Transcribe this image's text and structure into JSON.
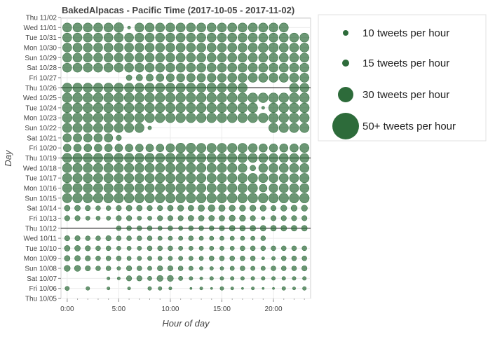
{
  "chart_data": {
    "type": "scatter",
    "title": "BakedAlpacas - Pacific Time (2017-10-05 - 2017-11-02)",
    "xlabel": "Hour of day",
    "ylabel": "Day",
    "x_ticks": [
      "0:00",
      "5:00",
      "10:00",
      "15:00",
      "20:00"
    ],
    "x_tick_values": [
      0,
      5,
      10,
      15,
      20
    ],
    "xlim": [
      -0.6,
      23.6
    ],
    "days": [
      "Thu 10/05",
      "Fri 10/06",
      "Sat 10/07",
      "Sun 10/08",
      "Mon 10/09",
      "Tue 10/10",
      "Wed 10/11",
      "Thu 10/12",
      "Fri 10/13",
      "Sat 10/14",
      "Sun 10/15",
      "Mon 10/16",
      "Tue 10/17",
      "Wed 10/18",
      "Thu 10/19",
      "Fri 10/20",
      "Sat 10/21",
      "Sun 10/22",
      "Mon 10/23",
      "Tue 10/24",
      "Wed 10/25",
      "Thu 10/26",
      "Fri 10/27",
      "Sat 10/28",
      "Sun 10/29",
      "Mon 10/30",
      "Tue 10/31",
      "Wed 11/01",
      "Thu 11/02"
    ],
    "week_separators": [
      "Thu 10/12",
      "Thu 10/19",
      "Thu 10/26"
    ],
    "marker_color": "#2d6b3a",
    "marker_fill_opacity": 0.7,
    "grid": true,
    "legend_position": "outside-right",
    "legend": [
      {
        "label": "10 tweets per hour",
        "value": 10
      },
      {
        "label": "15 tweets per hour",
        "value": 15
      },
      {
        "label": "30 tweets per hour",
        "value": 30
      },
      {
        "label": "50+ tweets per hour",
        "value": 50
      }
    ],
    "tweets_per_hour": {
      "Fri 10/06": [
        4,
        0,
        3,
        0,
        2,
        0,
        2,
        0,
        3,
        3,
        2,
        0,
        1,
        2,
        1,
        3,
        2,
        1,
        2,
        1,
        1,
        3,
        2,
        3
      ],
      "Sat 10/07": [
        0,
        0,
        0,
        0,
        2,
        2,
        6,
        6,
        4,
        8,
        8,
        4,
        3,
        2,
        3,
        3,
        3,
        3,
        3,
        3,
        3,
        3,
        3,
        3
      ],
      "Sun 10/08": [
        8,
        8,
        6,
        5,
        5,
        3,
        6,
        5,
        4,
        6,
        6,
        5,
        4,
        3,
        3,
        3,
        4,
        5,
        4,
        4,
        5,
        5,
        5,
        6
      ],
      "Mon 10/09": [
        7,
        7,
        6,
        5,
        5,
        5,
        4,
        4,
        4,
        4,
        4,
        4,
        4,
        4,
        5,
        5,
        5,
        5,
        5,
        2,
        3,
        5,
        5,
        5
      ],
      "Tue 10/10": [
        7,
        7,
        6,
        5,
        5,
        4,
        4,
        4,
        5,
        5,
        5,
        4,
        4,
        4,
        4,
        4,
        4,
        5,
        5,
        5,
        5,
        5,
        5,
        5
      ],
      "Wed 10/11": [
        6,
        6,
        5,
        5,
        6,
        5,
        5,
        5,
        5,
        4,
        4,
        4,
        5,
        4,
        4,
        4,
        4,
        4,
        4,
        5,
        0,
        0,
        0,
        0
      ],
      "Thu 10/12": [
        0,
        0,
        0,
        0,
        0,
        5,
        5,
        5,
        5,
        4,
        5,
        4,
        5,
        5,
        5,
        6,
        7,
        7,
        7,
        7,
        7,
        7,
        7,
        7
      ],
      "Fri 10/13": [
        6,
        6,
        4,
        4,
        4,
        6,
        6,
        4,
        4,
        6,
        6,
        6,
        7,
        7,
        7,
        7,
        8,
        8,
        6,
        3,
        6,
        6,
        6,
        6
      ],
      "Sat 10/14": [
        7,
        7,
        6,
        5,
        5,
        6,
        7,
        7,
        6,
        6,
        7,
        8,
        7,
        9,
        10,
        9,
        8,
        8,
        8,
        8,
        6,
        8,
        8,
        8
      ],
      "Sun 10/15": [
        19,
        20,
        20,
        20,
        20,
        20,
        20,
        20,
        20,
        20,
        20,
        20,
        20,
        20,
        20,
        20,
        20,
        20,
        20,
        20,
        20,
        20,
        20,
        20
      ],
      "Mon 10/16": [
        19,
        19,
        19,
        19,
        19,
        19,
        19,
        19,
        19,
        20,
        20,
        20,
        20,
        19,
        19,
        19,
        19,
        19,
        19,
        13,
        17,
        18,
        18,
        18
      ],
      "Tue 10/17": [
        19,
        19,
        19,
        19,
        19,
        19,
        19,
        19,
        19,
        20,
        20,
        20,
        20,
        19,
        19,
        19,
        19,
        19,
        19,
        18,
        18,
        18,
        18,
        19
      ],
      "Wed 10/18": [
        19,
        19,
        19,
        19,
        19,
        19,
        19,
        19,
        19,
        19,
        20,
        20,
        20,
        19,
        19,
        19,
        19,
        17,
        7,
        17,
        18,
        18,
        18,
        18
      ],
      "Thu 10/19": [
        19,
        19,
        19,
        19,
        19,
        19,
        19,
        19,
        19,
        19,
        20,
        20,
        20,
        19,
        19,
        19,
        19,
        19,
        18,
        18,
        18,
        18,
        18,
        18
      ],
      "Fri 10/20": [
        13,
        13,
        13,
        13,
        13,
        13,
        13,
        13,
        13,
        13,
        16,
        20,
        20,
        19,
        19,
        19,
        19,
        19,
        17,
        15,
        15,
        15,
        15,
        18
      ],
      "Sat 10/21": [
        16,
        16,
        16,
        16,
        16,
        6,
        0,
        0,
        0,
        0,
        0,
        0,
        0,
        0,
        0,
        0,
        0,
        0,
        0,
        0,
        0,
        0,
        0,
        0
      ],
      "Sun 10/22": [
        19,
        19,
        19,
        19,
        19,
        19,
        19,
        19,
        3,
        0,
        0,
        0,
        0,
        0,
        0,
        0,
        0,
        0,
        0,
        0,
        19,
        19,
        19,
        19
      ],
      "Mon 10/23": [
        20,
        20,
        20,
        20,
        20,
        20,
        20,
        20,
        20,
        20,
        20,
        20,
        20,
        20,
        20,
        20,
        20,
        20,
        20,
        20,
        20,
        20,
        20,
        20
      ],
      "Tue 10/24": [
        20,
        20,
        20,
        20,
        20,
        20,
        20,
        20,
        20,
        20,
        20,
        20,
        20,
        20,
        20,
        20,
        20,
        20,
        20,
        2,
        20,
        20,
        20,
        20
      ],
      "Wed 10/25": [
        20,
        20,
        20,
        20,
        20,
        20,
        20,
        20,
        20,
        20,
        20,
        20,
        20,
        20,
        20,
        20,
        20,
        20,
        20,
        20,
        20,
        20,
        20,
        20
      ],
      "Thu 10/26": [
        19,
        19,
        19,
        19,
        19,
        19,
        19,
        19,
        19,
        19,
        19,
        19,
        19,
        19,
        19,
        19,
        19,
        19,
        0,
        0,
        0,
        0,
        18,
        18
      ],
      "Fri 10/27": [
        0,
        0,
        0,
        0,
        0,
        0,
        7,
        9,
        11,
        13,
        14,
        15,
        16,
        16,
        17,
        17,
        18,
        18,
        18,
        18,
        18,
        18,
        18,
        18
      ],
      "Sat 10/28": [
        18,
        18,
        18,
        18,
        18,
        18,
        18,
        18,
        18,
        18,
        18,
        18,
        18,
        18,
        18,
        18,
        18,
        18,
        18,
        18,
        18,
        18,
        18,
        18
      ],
      "Sun 10/29": [
        18,
        18,
        18,
        18,
        18,
        18,
        18,
        18,
        18,
        18,
        18,
        18,
        18,
        18,
        18,
        18,
        18,
        18,
        18,
        18,
        18,
        18,
        18,
        18
      ],
      "Mon 10/30": [
        18,
        18,
        18,
        18,
        18,
        18,
        18,
        18,
        18,
        18,
        18,
        18,
        18,
        18,
        18,
        18,
        18,
        18,
        18,
        20,
        20,
        18,
        18,
        18
      ],
      "Tue 10/31": [
        18,
        18,
        18,
        18,
        18,
        18,
        18,
        18,
        18,
        18,
        18,
        18,
        18,
        18,
        18,
        18,
        18,
        18,
        18,
        18,
        18,
        18,
        18,
        18
      ],
      "Wed 11/01": [
        18,
        18,
        18,
        18,
        18,
        20,
        2,
        18,
        18,
        18,
        18,
        18,
        18,
        18,
        18,
        18,
        18,
        18,
        18,
        18,
        18,
        18,
        0,
        0
      ]
    }
  }
}
